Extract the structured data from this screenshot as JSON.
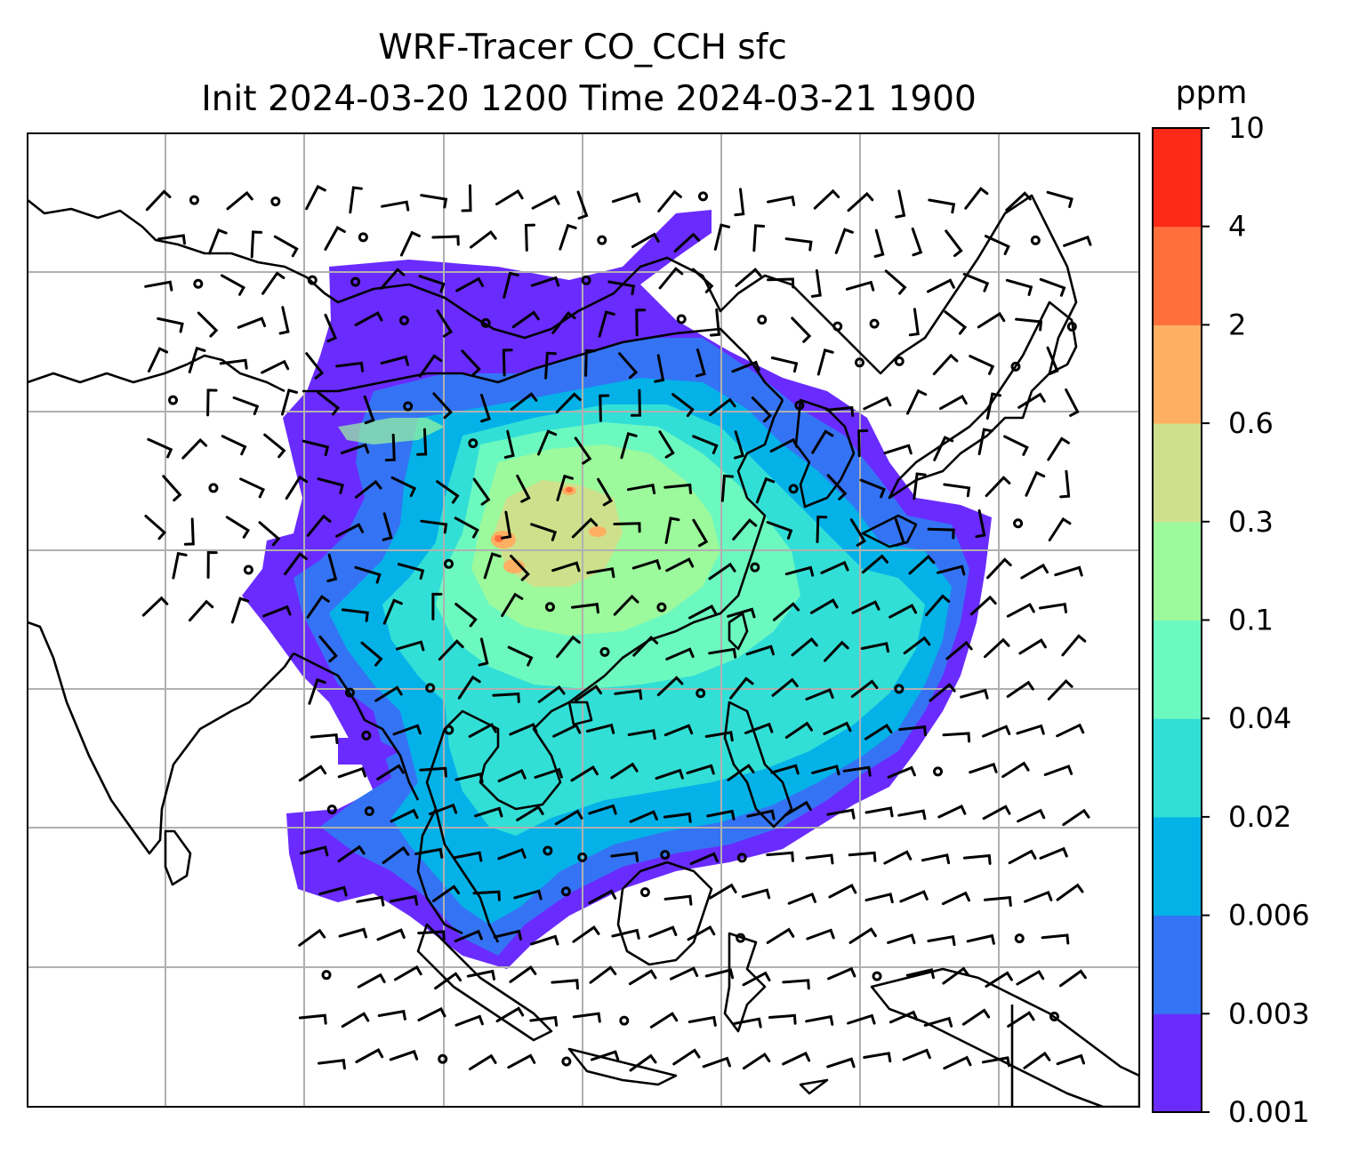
{
  "title_line1": "WRF-Tracer CO_CCH sfc",
  "title_line2": "Init 2024-03-20 1200 Time 2024-03-21 1900",
  "colorbar": {
    "unit": "ppm",
    "ticks": [
      "0.001",
      "0.003",
      "0.006",
      "0.02",
      "0.04",
      "0.1",
      "0.3",
      "0.6",
      "2",
      "4",
      "10"
    ],
    "colors": [
      "#6a2bff",
      "#3474f4",
      "#04b2e8",
      "#32dfd6",
      "#6cf9c0",
      "#9cf99c",
      "#cfe08c",
      "#feaf62",
      "#fe6f3c",
      "#fe2a18"
    ]
  },
  "map": {
    "gridlines": true,
    "coastline_color": "#000000",
    "gridline_color": "#b0b0b0",
    "field": "CO_CCH tracer concentration (surface)",
    "overlay": "wind barbs"
  }
}
